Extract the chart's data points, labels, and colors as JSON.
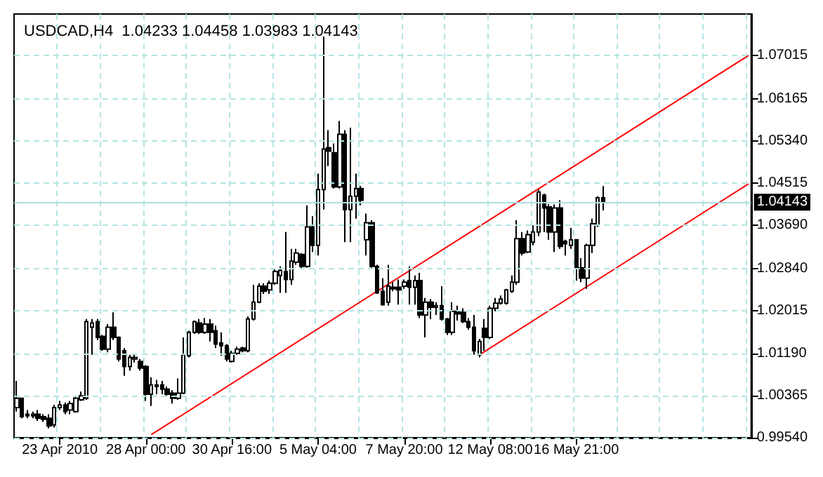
{
  "chart_data": {
    "type": "candlestick",
    "title": "USDCAD,H4  1.04233 1.04458 1.03983 1.04143",
    "categories": [
      null,
      null,
      null,
      null,
      null,
      null,
      null,
      null,
      "23 Apr 2010",
      null,
      null,
      null,
      null,
      null,
      null,
      null,
      null,
      null,
      null,
      null,
      null,
      null,
      null,
      null,
      "28 Apr 00:00",
      null,
      null,
      null,
      null,
      null,
      null,
      null,
      null,
      null,
      null,
      null,
      null,
      null,
      null,
      null,
      "30 Apr 16:00",
      null,
      null,
      null,
      null,
      null,
      null,
      null,
      null,
      null,
      null,
      null,
      null,
      null,
      null,
      null,
      "5 May 04:00",
      null,
      null,
      null,
      null,
      null,
      null,
      null,
      null,
      null,
      null,
      null,
      null,
      null,
      null,
      null,
      "7 May 20:00",
      null,
      null,
      null,
      null,
      null,
      null,
      null,
      null,
      null,
      null,
      null,
      null,
      null,
      null,
      null,
      "12 May 08:00",
      null,
      null,
      null,
      null,
      null,
      null,
      null,
      null,
      null,
      null,
      null,
      null,
      null,
      null,
      null,
      "16 May 21:00",
      null,
      null,
      null,
      null,
      null,
      null,
      null,
      null,
      null,
      null,
      null,
      null,
      null,
      null,
      null,
      null,
      null,
      null,
      null,
      null,
      null,
      null,
      null,
      null,
      null,
      null,
      null,
      null,
      null,
      null,
      null,
      null
    ],
    "ohlc": [
      [
        1.0013,
        1.0065,
        1.0005,
        1.0031
      ],
      [
        1.0031,
        1.0031,
        0.9992,
        0.9995
      ],
      [
        1.0,
        1.0008,
        0.9992,
        0.9997
      ],
      [
        0.9997,
        1.0005,
        0.9992,
        1.0
      ],
      [
        1.0,
        1.0008,
        0.9987,
        0.9992
      ],
      [
        0.9995,
        1.0,
        0.9985,
        0.999
      ],
      [
        0.9992,
        1.0,
        0.9972,
        0.9977
      ],
      [
        0.9979,
        1.0018,
        0.9974,
        1.0013
      ],
      [
        1.0013,
        1.0026,
        1.0008,
        1.0018
      ],
      [
        1.0018,
        1.0023,
        1.0,
        1.0005
      ],
      [
        1.0008,
        1.0026,
        1.0,
        1.0021
      ],
      [
        1.0005,
        1.0034,
        1.0003,
        1.0031
      ],
      [
        1.0028,
        1.0044,
        1.0026,
        1.0036
      ],
      [
        1.0031,
        1.0186,
        1.0028,
        1.0181
      ],
      [
        1.017,
        1.0186,
        1.0116,
        1.0178
      ],
      [
        1.0181,
        1.0186,
        1.0145,
        1.015
      ],
      [
        1.0152,
        1.0155,
        1.0124,
        1.0127
      ],
      [
        1.0127,
        1.0176,
        1.0121,
        1.017
      ],
      [
        1.017,
        1.0199,
        1.0145,
        1.015
      ],
      [
        1.015,
        1.0152,
        1.0103,
        1.0108
      ],
      [
        1.0124,
        1.0129,
        1.0075,
        1.0093
      ],
      [
        1.0093,
        1.0116,
        1.0085,
        1.0111
      ],
      [
        1.0108,
        1.0116,
        1.0101,
        1.0111
      ],
      [
        1.0103,
        1.0108,
        1.0085,
        1.009
      ],
      [
        1.0093,
        1.0096,
        1.0026,
        1.0039
      ],
      [
        1.0039,
        1.0072,
        1.0016,
        1.0057
      ],
      [
        1.0054,
        1.0067,
        1.0039,
        1.0057
      ],
      [
        1.0057,
        1.0065,
        1.0039,
        1.0049
      ],
      [
        1.0049,
        1.0054,
        1.0036,
        1.0039
      ],
      [
        1.0041,
        1.0047,
        1.0021,
        1.0031
      ],
      [
        1.0031,
        1.007,
        1.0028,
        1.0041
      ],
      [
        1.0041,
        1.015,
        1.0039,
        1.0116
      ],
      [
        1.0114,
        1.0163,
        1.0111,
        1.016
      ],
      [
        1.016,
        1.0183,
        1.0157,
        1.0181
      ],
      [
        1.0178,
        1.0186,
        1.0157,
        1.016
      ],
      [
        1.016,
        1.0188,
        1.0157,
        1.0176
      ],
      [
        1.0176,
        1.0186,
        1.0142,
        1.016
      ],
      [
        1.0163,
        1.0173,
        1.0129,
        1.0137
      ],
      [
        1.0139,
        1.016,
        1.0114,
        1.0134
      ],
      [
        1.0134,
        1.0137,
        1.0103,
        1.0108
      ],
      [
        1.0103,
        1.0124,
        1.0101,
        1.0119
      ],
      [
        1.0119,
        1.0132,
        1.0116,
        1.0127
      ],
      [
        1.0129,
        1.0132,
        1.0121,
        1.0124
      ],
      [
        1.0124,
        1.0191,
        1.0121,
        1.0186
      ],
      [
        1.0186,
        1.0253,
        1.0183,
        1.0219
      ],
      [
        1.0219,
        1.0256,
        1.0217,
        1.025
      ],
      [
        1.025,
        1.0256,
        1.0235,
        1.024
      ],
      [
        1.0243,
        1.0261,
        1.0235,
        1.0256
      ],
      [
        1.0256,
        1.0284,
        1.0253,
        1.0279
      ],
      [
        1.0271,
        1.0289,
        1.0237,
        1.0281
      ],
      [
        1.0279,
        1.0356,
        1.0237,
        1.0263
      ],
      [
        1.0263,
        1.0323,
        1.0253,
        1.0299
      ],
      [
        1.0297,
        1.0323,
        1.0292,
        1.0315
      ],
      [
        1.0312,
        1.0315,
        1.0284,
        1.0289
      ],
      [
        1.0289,
        1.0408,
        1.0286,
        1.0366
      ],
      [
        1.0366,
        1.0387,
        1.0317,
        1.033
      ],
      [
        1.033,
        1.047,
        1.031,
        1.0439
      ],
      [
        1.0439,
        1.0738,
        1.04,
        1.0518
      ],
      [
        1.0521,
        1.0555,
        1.0485,
        1.0514
      ],
      [
        1.0511,
        1.0529,
        1.0441,
        1.0444
      ],
      [
        1.0444,
        1.0573,
        1.0441,
        1.0547
      ],
      [
        1.0547,
        1.0555,
        1.0336,
        1.04
      ],
      [
        1.04,
        1.056,
        1.0336,
        1.0426
      ],
      [
        1.0426,
        1.047,
        1.0382,
        1.0441
      ],
      [
        1.0441,
        1.0446,
        1.0408,
        1.0418
      ],
      [
        1.0341,
        1.0392,
        1.031,
        1.0374
      ],
      [
        1.0374,
        1.0379,
        1.0286,
        1.0289
      ],
      [
        1.0289,
        1.0292,
        1.0235,
        1.0237
      ],
      [
        1.024,
        1.0266,
        1.0212,
        1.0214
      ],
      [
        1.0219,
        1.0292,
        1.0212,
        1.025
      ],
      [
        1.0248,
        1.0258,
        1.024,
        1.0245
      ],
      [
        1.0248,
        1.0263,
        1.0214,
        1.0243
      ],
      [
        1.025,
        1.0263,
        1.0245,
        1.0258
      ],
      [
        1.0261,
        1.0289,
        1.0214,
        1.0248
      ],
      [
        1.0248,
        1.0271,
        1.0214,
        1.0261
      ],
      [
        1.0261,
        1.0276,
        1.0188,
        1.0194
      ],
      [
        1.0194,
        1.0227,
        1.015,
        1.0219
      ],
      [
        1.0219,
        1.0225,
        1.0186,
        1.0209
      ],
      [
        1.0209,
        1.0219,
        1.0194,
        1.0212
      ],
      [
        1.0212,
        1.025,
        1.0183,
        1.0186
      ],
      [
        1.0186,
        1.0188,
        1.0155,
        1.016
      ],
      [
        1.016,
        1.0219,
        1.0155,
        1.0201
      ],
      [
        1.0201,
        1.0212,
        1.0183,
        1.0196
      ],
      [
        1.0199,
        1.0207,
        1.0178,
        1.0181
      ],
      [
        1.0181,
        1.0188,
        1.0165,
        1.017
      ],
      [
        1.017,
        1.0194,
        1.0116,
        1.0124
      ],
      [
        1.0116,
        1.0147,
        1.0111,
        1.0142
      ],
      [
        1.0168,
        1.0186,
        1.0124,
        1.015
      ],
      [
        1.015,
        1.0212,
        1.0147,
        1.0207
      ],
      [
        1.0207,
        1.0227,
        1.0201,
        1.0217
      ],
      [
        1.0217,
        1.0232,
        1.0214,
        1.0225
      ],
      [
        1.0217,
        1.0245,
        1.0214,
        1.0243
      ],
      [
        1.024,
        1.0271,
        1.0237,
        1.0258
      ],
      [
        1.0258,
        1.0379,
        1.0253,
        1.0343
      ],
      [
        1.0343,
        1.0356,
        1.031,
        1.0315
      ],
      [
        1.0317,
        1.0359,
        1.0315,
        1.0351
      ],
      [
        1.0336,
        1.0369,
        1.033,
        1.0356
      ],
      [
        1.0356,
        1.0439,
        1.0348,
        1.0434
      ],
      [
        1.0428,
        1.0431,
        1.0356,
        1.0403
      ],
      [
        1.0405,
        1.041,
        1.0341,
        1.0356
      ],
      [
        1.0356,
        1.041,
        1.0317,
        1.0403
      ],
      [
        1.0403,
        1.0418,
        1.0323,
        1.0328
      ],
      [
        1.0338,
        1.0341,
        1.031,
        1.0333
      ],
      [
        1.033,
        1.0364,
        1.0323,
        1.0341
      ],
      [
        1.0341,
        1.0341,
        1.0261,
        1.0286
      ],
      [
        1.0286,
        1.0305,
        1.0258,
        1.0266
      ],
      [
        1.0266,
        1.0333,
        1.0245,
        1.033
      ],
      [
        1.033,
        1.0382,
        1.0315,
        1.0372
      ],
      [
        1.0369,
        1.0426,
        1.0366,
        1.0423
      ],
      [
        1.04233,
        1.04458,
        1.03983,
        1.04143
      ],
      null,
      null,
      null,
      null,
      null,
      null,
      null,
      null,
      null,
      null,
      null,
      null,
      null,
      null,
      null,
      null,
      null,
      null,
      null,
      null,
      null,
      null,
      null,
      null,
      null,
      null,
      null
    ],
    "series": [
      {
        "type": "line",
        "color": "#ff0000",
        "values": [
          null,
          null,
          null,
          null,
          null,
          null,
          null,
          null,
          null,
          null,
          null,
          null,
          null,
          null,
          null,
          null,
          null,
          null,
          null,
          null,
          null,
          null,
          null,
          null,
          null,
          0.996,
          null,
          null,
          null,
          null,
          null,
          null,
          null,
          null,
          null,
          null,
          null,
          null,
          null,
          null,
          null,
          null,
          null,
          null,
          null,
          null,
          null,
          null,
          null,
          null,
          null,
          null,
          null,
          null,
          null,
          null,
          null,
          null,
          null,
          null,
          null,
          null,
          null,
          null,
          null,
          null,
          null,
          null,
          null,
          null,
          null,
          null,
          null,
          null,
          null,
          null,
          null,
          null,
          null,
          null,
          null,
          null,
          null,
          null,
          null,
          null,
          null,
          null,
          null,
          null,
          null,
          null,
          null,
          null,
          null,
          null,
          null,
          null,
          null,
          null,
          null,
          null,
          null,
          null,
          null,
          null,
          null,
          null,
          null,
          null,
          null,
          null,
          null,
          null,
          null,
          null,
          null,
          null,
          null,
          null,
          null,
          null,
          null,
          null,
          null,
          null,
          null,
          null,
          null,
          null,
          null,
          null,
          null,
          null,
          null,
          null,
          1.0701
        ]
      },
      {
        "type": "line",
        "color": "#ff0000",
        "values": [
          null,
          null,
          null,
          null,
          null,
          null,
          null,
          null,
          null,
          null,
          null,
          null,
          null,
          null,
          null,
          null,
          null,
          null,
          null,
          null,
          null,
          null,
          null,
          null,
          null,
          null,
          null,
          null,
          null,
          null,
          null,
          null,
          null,
          null,
          null,
          null,
          null,
          null,
          null,
          null,
          null,
          null,
          null,
          null,
          null,
          null,
          null,
          null,
          null,
          null,
          null,
          null,
          null,
          null,
          null,
          null,
          null,
          null,
          null,
          null,
          null,
          null,
          null,
          null,
          null,
          null,
          null,
          null,
          null,
          null,
          null,
          null,
          null,
          null,
          null,
          null,
          null,
          null,
          null,
          null,
          null,
          null,
          null,
          null,
          null,
          null,
          1.0116,
          null,
          null,
          null,
          null,
          null,
          null,
          null,
          null,
          null,
          null,
          null,
          null,
          null,
          null,
          null,
          null,
          null,
          null,
          null,
          null,
          null,
          null,
          null,
          null,
          null,
          null,
          null,
          null,
          null,
          null,
          null,
          null,
          null,
          null,
          null,
          null,
          null,
          null,
          null,
          null,
          null,
          null,
          null,
          null,
          null,
          null,
          null,
          null,
          null,
          1.045
        ]
      }
    ],
    "ylim": [
      0.9954,
      1.0782
    ],
    "yticks": [
      1.07015,
      1.06165,
      {
        "value": 1.0534,
        "label": "1.05340"
      },
      1.04515,
      {
        "value": 1.0369,
        "label": "1.03690"
      },
      {
        "value": 1.0284,
        "label": "1.02840"
      },
      1.02015,
      {
        "value": 1.0119,
        "label": "1.01190"
      },
      1.00365,
      {
        "value": 0.9954,
        "label": "0.99540"
      }
    ],
    "ref_lines": [
      {
        "axis": "y",
        "value": 1.04143,
        "label": "1.04143",
        "color": "#a8e0e0"
      }
    ],
    "grid": true
  }
}
